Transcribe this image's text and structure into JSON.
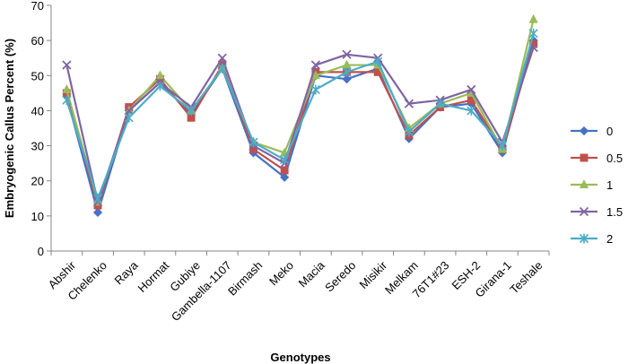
{
  "chart_data": {
    "type": "line",
    "title": "",
    "xlabel": "Genotypes",
    "ylabel": "Embryogenic Callus Percent (%)",
    "ylim": [
      0,
      70
    ],
    "ytick_step": 10,
    "grid": false,
    "legend_position": "right",
    "categories": [
      "Abshir",
      "Chelenko",
      "Raya",
      "Hormat",
      "Gubiye",
      "Gambella-1107",
      "Birmash",
      "Meko",
      "Macia",
      "Seredo",
      "Misikir",
      "Melkam",
      "76T1#23",
      "ESH-2",
      "Girana-1",
      "Teshale"
    ],
    "series": [
      {
        "name": "0",
        "color": "#4472C4",
        "marker": "diamond",
        "values": [
          44,
          11,
          40,
          48,
          39,
          52,
          28,
          21,
          50,
          49,
          52,
          32,
          41,
          42,
          28,
          60
        ]
      },
      {
        "name": "0.5",
        "color": "#C0504D",
        "marker": "square",
        "values": [
          45,
          13,
          41,
          49,
          38,
          53,
          29,
          23,
          51,
          51,
          51,
          33,
          41,
          43,
          29,
          59
        ]
      },
      {
        "name": "1",
        "color": "#9BBB59",
        "marker": "triangle",
        "values": [
          46,
          14,
          40,
          50,
          40,
          52,
          31,
          28,
          50,
          53,
          53,
          35,
          42,
          45,
          29,
          66
        ]
      },
      {
        "name": "1.5",
        "color": "#8064A2",
        "marker": "x",
        "values": [
          53,
          14,
          40,
          48,
          41,
          55,
          30,
          25,
          53,
          56,
          55,
          42,
          43,
          46,
          31,
          58
        ]
      },
      {
        "name": "2",
        "color": "#4BACC6",
        "marker": "star",
        "values": [
          43,
          15,
          38,
          47,
          40,
          52,
          31,
          26,
          46,
          51,
          54,
          34,
          42,
          40,
          30,
          62
        ]
      }
    ]
  }
}
